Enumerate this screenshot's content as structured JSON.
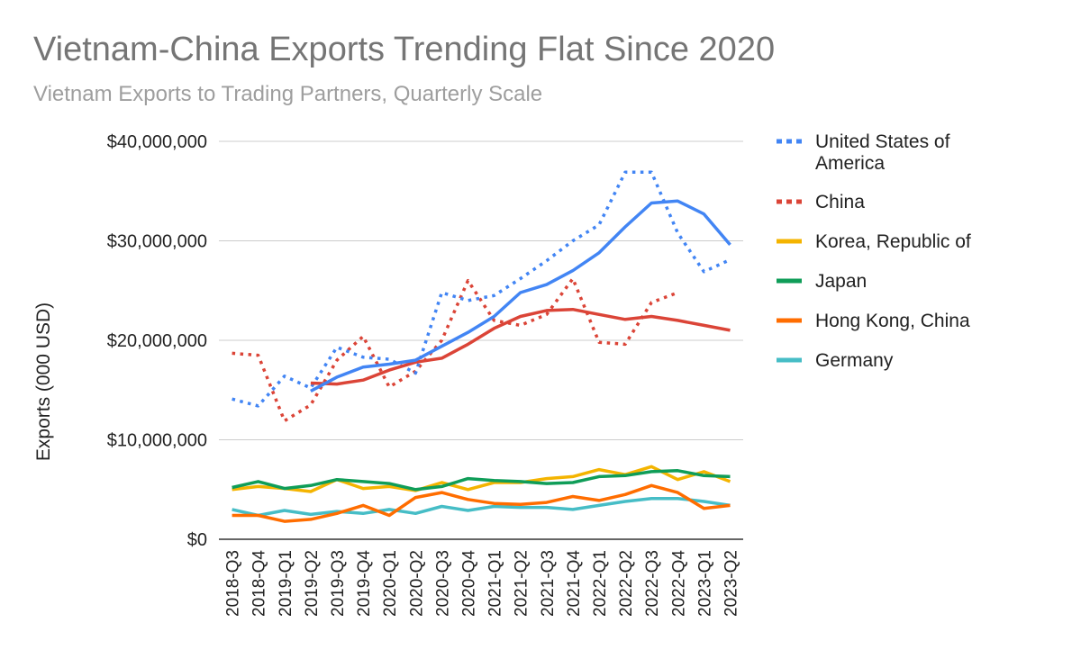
{
  "chart_data": {
    "type": "line",
    "title": "Vietnam-China Exports Trending Flat Since 2020",
    "subtitle": "Vietnam Exports to Trading Partners, Quarterly Scale",
    "xlabel": "",
    "ylabel": "Exports (000 USD)",
    "ylim": [
      0,
      40000000
    ],
    "yticks": [
      0,
      10000000,
      20000000,
      30000000,
      40000000
    ],
    "ytick_labels": [
      "$0",
      "$10,000,000",
      "$20,000,000",
      "$30,000,000",
      "$40,000,000"
    ],
    "grid": true,
    "legend_position": "right",
    "categories": [
      "2018-Q3",
      "2018-Q4",
      "2019-Q1",
      "2019-Q2",
      "2019-Q3",
      "2019-Q4",
      "2020-Q1",
      "2020-Q2",
      "2020-Q3",
      "2020-Q4",
      "2021-Q1",
      "2021-Q2",
      "2021-Q3",
      "2021-Q4",
      "2022-Q1",
      "2022-Q2",
      "2022-Q3",
      "2022-Q4",
      "2023-Q1",
      "2023-Q2"
    ],
    "series": [
      {
        "name": "United States of America",
        "color": "#4285f4",
        "style": "dotted",
        "values": [
          14100000,
          13400000,
          16400000,
          15200000,
          19300000,
          18300000,
          18100000,
          16700000,
          24800000,
          24000000,
          24500000,
          26200000,
          28000000,
          30000000,
          31600000,
          36900000,
          36900000,
          30800000,
          26900000,
          28100000
        ]
      },
      {
        "name": "China",
        "color": "#db4437",
        "style": "dotted",
        "values": [
          18700000,
          18500000,
          11900000,
          13500000,
          18000000,
          20400000,
          15300000,
          16900000,
          20000000,
          26000000,
          22000000,
          21500000,
          22600000,
          26200000,
          19800000,
          19600000,
          23800000,
          24800000,
          null,
          null
        ]
      },
      {
        "name": "",
        "color": "#4285f4",
        "style": "solid",
        "values": [
          null,
          null,
          null,
          14900000,
          16300000,
          17300000,
          17600000,
          18000000,
          19400000,
          20800000,
          22400000,
          24800000,
          25600000,
          27000000,
          28800000,
          31400000,
          33800000,
          34000000,
          32700000,
          29600000
        ]
      },
      {
        "name": "",
        "color": "#db4437",
        "style": "solid",
        "values": [
          null,
          null,
          null,
          15700000,
          15600000,
          16000000,
          17000000,
          17800000,
          18200000,
          19600000,
          21200000,
          22400000,
          23000000,
          23100000,
          22600000,
          22100000,
          22400000,
          22000000,
          21500000,
          21000000
        ]
      },
      {
        "name": "Korea, Republic of",
        "color": "#f4b400",
        "style": "solid",
        "values": [
          5000000,
          5300000,
          5100000,
          4800000,
          6000000,
          5100000,
          5300000,
          4900000,
          5700000,
          5000000,
          5700000,
          5700000,
          6100000,
          6300000,
          7000000,
          6500000,
          7300000,
          6000000,
          6800000,
          5800000
        ]
      },
      {
        "name": "Japan",
        "color": "#0f9d58",
        "style": "solid",
        "values": [
          5200000,
          5800000,
          5100000,
          5400000,
          6000000,
          5800000,
          5600000,
          5000000,
          5300000,
          6100000,
          5900000,
          5800000,
          5600000,
          5700000,
          6300000,
          6400000,
          6800000,
          6900000,
          6400000,
          6300000
        ]
      },
      {
        "name": "Hong Kong, China",
        "color": "#ff6d00",
        "style": "solid",
        "values": [
          2400000,
          2400000,
          1800000,
          2000000,
          2600000,
          3400000,
          2400000,
          4200000,
          4700000,
          4000000,
          3600000,
          3500000,
          3700000,
          4300000,
          3900000,
          4500000,
          5400000,
          4700000,
          3100000,
          3400000
        ]
      },
      {
        "name": "Germany",
        "color": "#46bdc6",
        "style": "solid",
        "values": [
          3000000,
          2400000,
          2900000,
          2500000,
          2800000,
          2600000,
          3000000,
          2600000,
          3300000,
          2900000,
          3300000,
          3200000,
          3200000,
          3000000,
          3400000,
          3800000,
          4100000,
          4100000,
          3800000,
          3400000
        ]
      }
    ]
  }
}
